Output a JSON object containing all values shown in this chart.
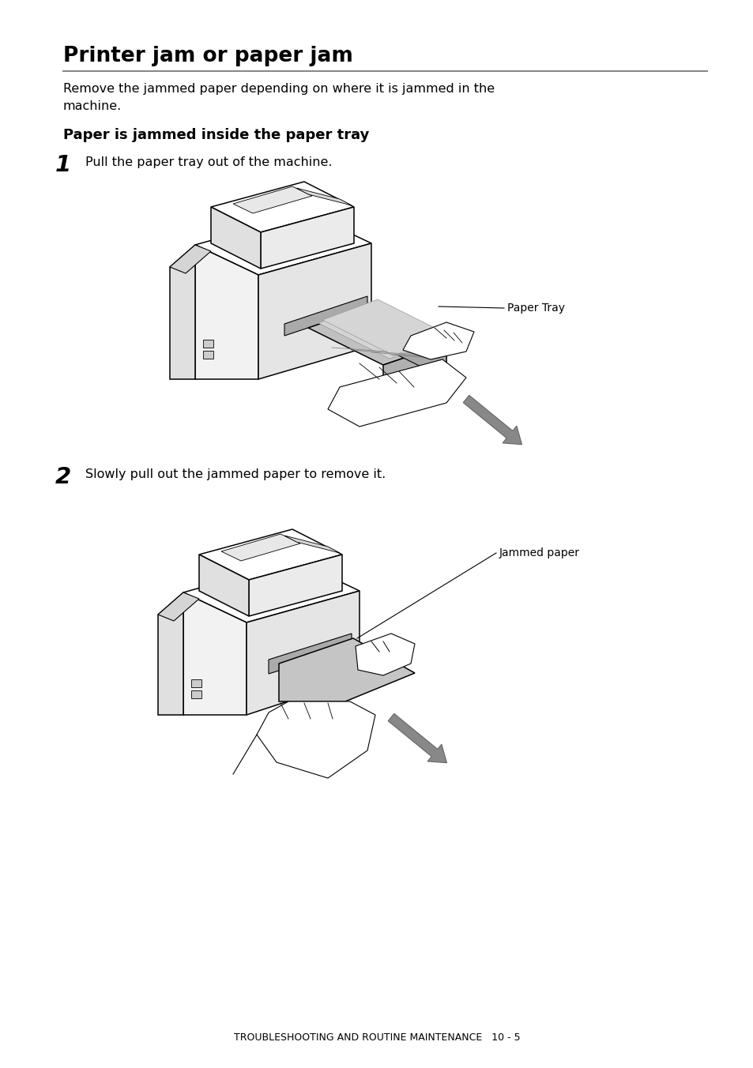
{
  "bg_color": "#ffffff",
  "text_color": "#000000",
  "title": "Printer jam or paper jam",
  "title_fontsize": 19,
  "hr_color": "#888888",
  "body_text": "Remove the jammed paper depending on where it is jammed in the\nmachine.",
  "body_fontsize": 11.5,
  "subheading": "Paper is jammed inside the paper tray",
  "subheading_fontsize": 13,
  "step1_text": "Pull the paper tray out of the machine.",
  "step1_fontsize": 11.5,
  "step2_text": "Slowly pull out the jammed paper to remove it.",
  "step2_fontsize": 11.5,
  "label1_text": "Paper Tray",
  "label2_text": "Jammed paper",
  "footer_text": "TROUBLESHOOTING AND ROUTINE MAINTENANCE   10 - 5",
  "footer_fontsize": 9,
  "gray_fill": "#c8c8c8",
  "dark_gray": "#888888",
  "arrow_color": "#888888"
}
